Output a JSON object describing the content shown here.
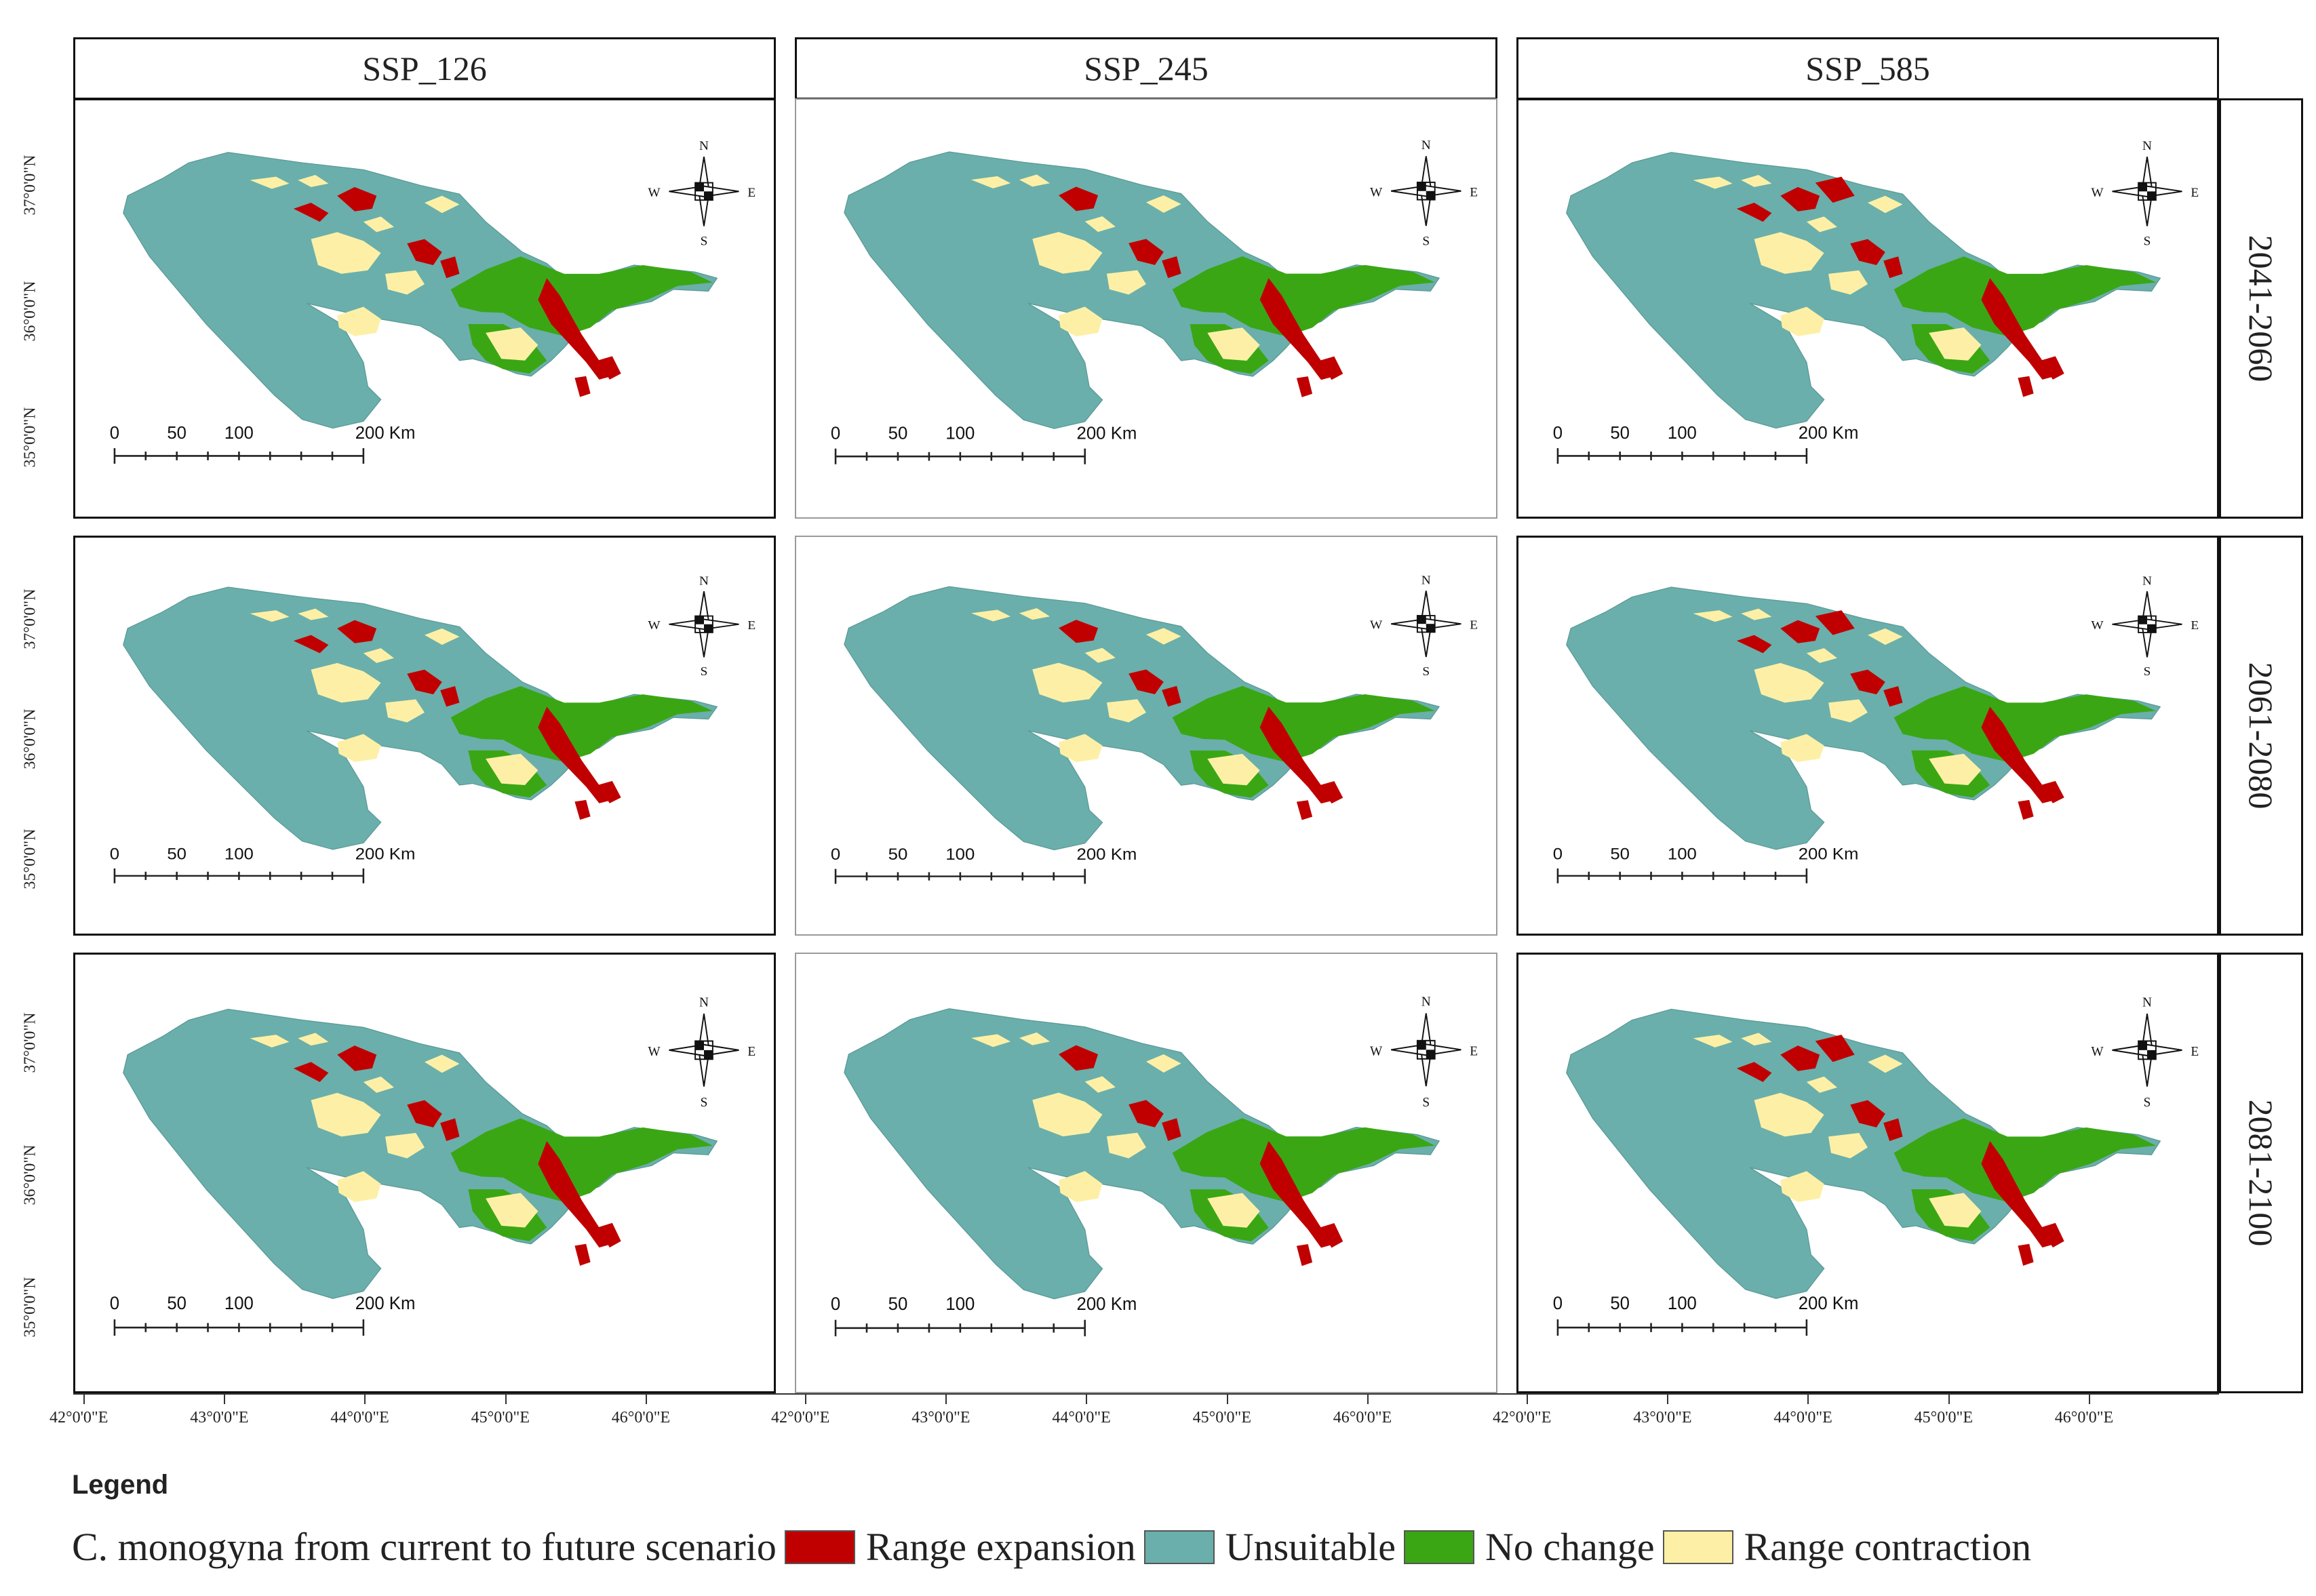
{
  "columns": [
    "SSP_126",
    "SSP_245",
    "SSP_585"
  ],
  "rows": [
    "2041-2060",
    "2061-2080",
    "2081-2100"
  ],
  "lat_labels": [
    "37°0'0\"N",
    "36°0'0\"N",
    "35°0'0\"N"
  ],
  "lon_labels": [
    "42°0'0\"E",
    "43°0'0\"E",
    "44°0'0\"E",
    "45°0'0\"E",
    "46°0'0\"E"
  ],
  "compass": {
    "n": "N",
    "s": "S",
    "e": "E",
    "w": "W"
  },
  "scale_bar": {
    "labels": [
      "0",
      "50",
      "100"
    ],
    "end_label": "200 Km"
  },
  "legend": {
    "title": "Legend",
    "caption": "C. monogyna from current to future scenario",
    "items": [
      {
        "label": "Range expansion",
        "color": "#c00000"
      },
      {
        "label": "Unsuitable",
        "color": "#6aafab"
      },
      {
        "label": "No change",
        "color": "#3aa614"
      },
      {
        "label": "Range contraction",
        "color": "#fdf0a6"
      }
    ]
  },
  "colors": {
    "unsuitable": "#6aafab",
    "expansion": "#c00000",
    "nochange": "#3aa614",
    "contraction": "#fdf0a6"
  }
}
